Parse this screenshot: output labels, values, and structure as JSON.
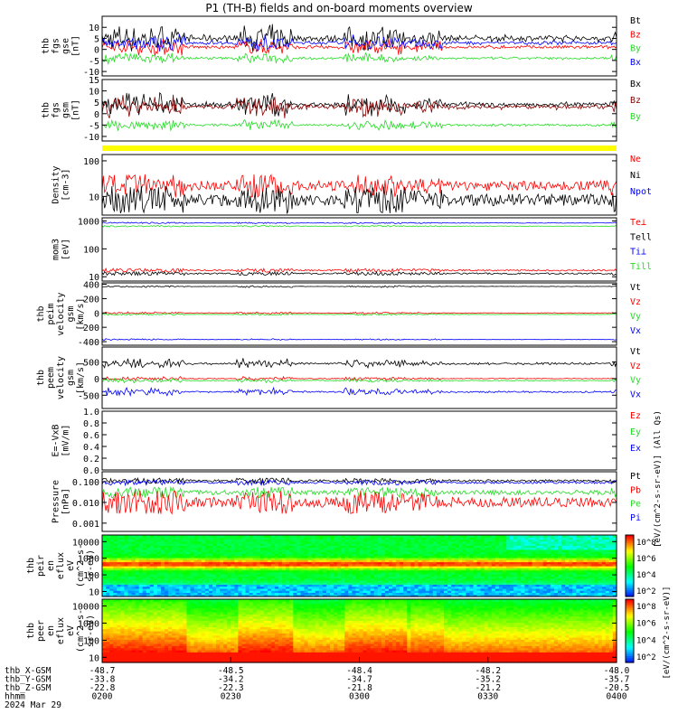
{
  "title": "P1 (TH-B) fields and on-board moments overview",
  "colors": {
    "black": "#000000",
    "red": "#ff0000",
    "green": "#22dd22",
    "blue": "#0000ff",
    "yellow": "#ffff00",
    "darkred": "#8b0000"
  },
  "chart_data": [
    {
      "id": "fgs_gse",
      "type": "line",
      "ylabel": [
        "thb",
        "fgs",
        "gse",
        "[nT]"
      ],
      "ylim": [
        -12,
        15
      ],
      "yticks": [
        "10",
        "5",
        "0",
        "-5",
        "-10"
      ],
      "ytick_values": [
        10,
        5,
        0,
        -5,
        -10
      ],
      "legend": [
        {
          "name": "Bt",
          "color": "black"
        },
        {
          "name": "Bz",
          "color": "red"
        },
        {
          "name": "By",
          "color": "green"
        },
        {
          "name": "Bx",
          "color": "blue"
        }
      ],
      "series": [
        {
          "name": "Bt",
          "color": "black",
          "level": 5,
          "amp": 5
        },
        {
          "name": "Bz",
          "color": "red",
          "level": 1,
          "amp": 3
        },
        {
          "name": "By",
          "color": "green",
          "level": -4,
          "amp": 2
        },
        {
          "name": "Bx",
          "color": "blue",
          "level": 3,
          "amp": 3
        }
      ]
    },
    {
      "id": "fgs_gsm",
      "type": "line",
      "ylabel": [
        "thb",
        "fgs",
        "gsm",
        "[nT]"
      ],
      "ylim": [
        -12,
        15
      ],
      "yticks": [
        "15",
        "10",
        "5",
        "0",
        "-5",
        "-10"
      ],
      "ytick_values": [
        15,
        10,
        5,
        0,
        -5,
        -10
      ],
      "legend": [
        {
          "name": "Bx",
          "color": "black"
        },
        {
          "name": "Bz",
          "color": "darkred"
        },
        {
          "name": "By",
          "color": "green"
        }
      ],
      "series": [
        {
          "name": "Bx",
          "color": "black",
          "level": 4,
          "amp": 4
        },
        {
          "name": "Bz",
          "color": "darkred",
          "level": 3,
          "amp": 4
        },
        {
          "name": "By",
          "color": "green",
          "level": -5,
          "amp": 2
        }
      ]
    },
    {
      "id": "density",
      "type": "line",
      "scale": "log",
      "ylabel": [
        "Density",
        "[cm-3]"
      ],
      "ylim": [
        3,
        150
      ],
      "yticks": [
        "100",
        "10"
      ],
      "ytick_values": [
        100,
        10
      ],
      "legend": [
        {
          "name": "Ne",
          "color": "red"
        },
        {
          "name": "Ni",
          "color": "black"
        },
        {
          "name": "Npot",
          "color": "blue"
        }
      ],
      "series": [
        {
          "name": "Ne",
          "color": "red",
          "level": 20,
          "amp": 0.25
        },
        {
          "name": "Ni",
          "color": "black",
          "level": 8,
          "amp": 0.3
        }
      ]
    },
    {
      "id": "temperature",
      "type": "line",
      "scale": "log",
      "ylabel": [
        "mom3",
        "[eV]"
      ],
      "ylim": [
        7,
        1300
      ],
      "yticks": [
        "1000",
        "100",
        "10"
      ],
      "ytick_values": [
        1000,
        100,
        10
      ],
      "legend": [
        {
          "name": "Te⊥",
          "color": "red"
        },
        {
          "name": "Tell",
          "color": "black"
        },
        {
          "name": "Ti⊥",
          "color": "blue"
        },
        {
          "name": "Till",
          "color": "green"
        }
      ],
      "series": [
        {
          "name": "Ti⊥",
          "color": "blue",
          "level": 850,
          "amp": 0.02
        },
        {
          "name": "Till",
          "color": "green",
          "level": 650,
          "amp": 0.02
        },
        {
          "name": "Te⊥",
          "color": "red",
          "level": 17,
          "amp": 0.05
        },
        {
          "name": "Tell",
          "color": "black",
          "level": 13,
          "amp": 0.05
        }
      ]
    },
    {
      "id": "peim_vel",
      "type": "line",
      "ylabel": [
        "thb",
        "peim",
        "velocity",
        "gsm",
        "[km/s]"
      ],
      "ylim": [
        -450,
        420
      ],
      "yticks": [
        "400",
        "200",
        "0",
        "-200",
        "-400"
      ],
      "ytick_values": [
        400,
        200,
        0,
        -200,
        -400
      ],
      "legend": [
        {
          "name": "Vt",
          "color": "black"
        },
        {
          "name": "Vz",
          "color": "red"
        },
        {
          "name": "Vy",
          "color": "green"
        },
        {
          "name": "Vx",
          "color": "blue"
        }
      ],
      "series": [
        {
          "name": "Vt",
          "color": "black",
          "level": 370,
          "amp": 12
        },
        {
          "name": "Vz",
          "color": "red",
          "level": 0,
          "amp": 15
        },
        {
          "name": "Vy",
          "color": "green",
          "level": -20,
          "amp": 12
        },
        {
          "name": "Vx",
          "color": "blue",
          "level": -370,
          "amp": 10
        }
      ]
    },
    {
      "id": "peem_vel",
      "type": "line",
      "ylabel": [
        "thb",
        "peem",
        "velocity",
        "gsm",
        "[km/s]"
      ],
      "ylim": [
        -900,
        950
      ],
      "yticks": [
        "500",
        "0",
        "-500"
      ],
      "ytick_values": [
        500,
        0,
        -500
      ],
      "legend": [
        {
          "name": "Vt",
          "color": "black"
        },
        {
          "name": "Vz",
          "color": "red"
        },
        {
          "name": "Vy",
          "color": "green"
        },
        {
          "name": "Vx",
          "color": "blue"
        }
      ],
      "series": [
        {
          "name": "Vt",
          "color": "black",
          "level": 450,
          "amp": 120
        },
        {
          "name": "Vz",
          "color": "red",
          "level": 0,
          "amp": 50
        },
        {
          "name": "Vy",
          "color": "green",
          "level": -60,
          "amp": 50
        },
        {
          "name": "Vx",
          "color": "blue",
          "level": -400,
          "amp": 100
        }
      ]
    },
    {
      "id": "efield",
      "type": "line",
      "ylabel": [
        "E=-VxB",
        "[mV/m]"
      ],
      "ylim": [
        0,
        1
      ],
      "yticks": [
        "1.0",
        "0.8",
        "0.6",
        "0.4",
        "0.2",
        "0.0"
      ],
      "ytick_values": [
        1,
        0.8,
        0.6,
        0.4,
        0.2,
        0
      ],
      "legend": [
        {
          "name": "Ez",
          "color": "red"
        },
        {
          "name": "Ey",
          "color": "green"
        },
        {
          "name": "Ex",
          "color": "blue"
        }
      ],
      "series": []
    },
    {
      "id": "pressure",
      "type": "line",
      "scale": "log",
      "ylabel": [
        "Pressure",
        "[nPa]"
      ],
      "ylim": [
        0.0004,
        0.3
      ],
      "yticks": [
        "0.100",
        "0.010",
        "0.001"
      ],
      "ytick_values": [
        0.1,
        0.01,
        0.001
      ],
      "legend": [
        {
          "name": "Pt",
          "color": "black"
        },
        {
          "name": "Pb",
          "color": "red"
        },
        {
          "name": "Pe",
          "color": "green"
        },
        {
          "name": "Pi",
          "color": "blue"
        }
      ],
      "series": [
        {
          "name": "Pt",
          "color": "black",
          "level": 0.11,
          "amp": 0.1
        },
        {
          "name": "Pi",
          "color": "blue",
          "level": 0.09,
          "amp": 0.1
        },
        {
          "name": "Pe",
          "color": "green",
          "level": 0.03,
          "amp": 0.2
        },
        {
          "name": "Pb",
          "color": "red",
          "level": 0.01,
          "amp": 0.45
        }
      ]
    },
    {
      "id": "peir_eflux",
      "type": "heatmap",
      "scale": "log",
      "ylabel": [
        "thb",
        "peir",
        "en",
        "eflux",
        "eV",
        "(cm^2-s-",
        "sr-eV)"
      ],
      "ylim": [
        5,
        25000
      ],
      "yticks": [
        "10000",
        "1000",
        "100",
        "10"
      ],
      "ytick_values": [
        10000,
        1000,
        100,
        10
      ]
    },
    {
      "id": "peer_eflux",
      "type": "heatmap",
      "scale": "log",
      "ylabel": [
        "thb",
        "peer",
        "en",
        "eflux",
        "eV",
        "(cm^2-s-",
        "sr-eV)"
      ],
      "ylim": [
        5,
        25000
      ],
      "yticks": [
        "10000",
        "1000",
        "100",
        "10"
      ],
      "ytick_values": [
        10000,
        1000,
        100,
        10
      ]
    }
  ],
  "colorbar": {
    "ticks": [
      "10^8",
      "10^6",
      "10^4",
      "10^2"
    ],
    "label": "[eV/(cm^2-s-sr-eV)]",
    "ticks2": [
      "10^8",
      "10^6",
      "10^4",
      "10^2"
    ],
    "label2": "[eV/(cm^2-s-sr-eV)] (All Qs)"
  },
  "xaxis": {
    "ticks": [
      "0200",
      "0230",
      "0300",
      "0330",
      "0400"
    ],
    "rows": [
      {
        "label": "thb_X-GSM",
        "values": [
          "-48.7",
          "-48.5",
          "-48.4",
          "-48.2",
          "-48.0"
        ]
      },
      {
        "label": "thb_Y-GSM",
        "values": [
          "-33.8",
          "-34.2",
          "-34.7",
          "-35.2",
          "-35.7"
        ]
      },
      {
        "label": "thb_Z-GSM",
        "values": [
          "-22.8",
          "-22.3",
          "-21.8",
          "-21.2",
          "-20.5"
        ]
      },
      {
        "label": "hhmm",
        "values": [
          "0200",
          "0230",
          "0300",
          "0330",
          "0400"
        ]
      }
    ],
    "date": "2024 Mar 29"
  }
}
